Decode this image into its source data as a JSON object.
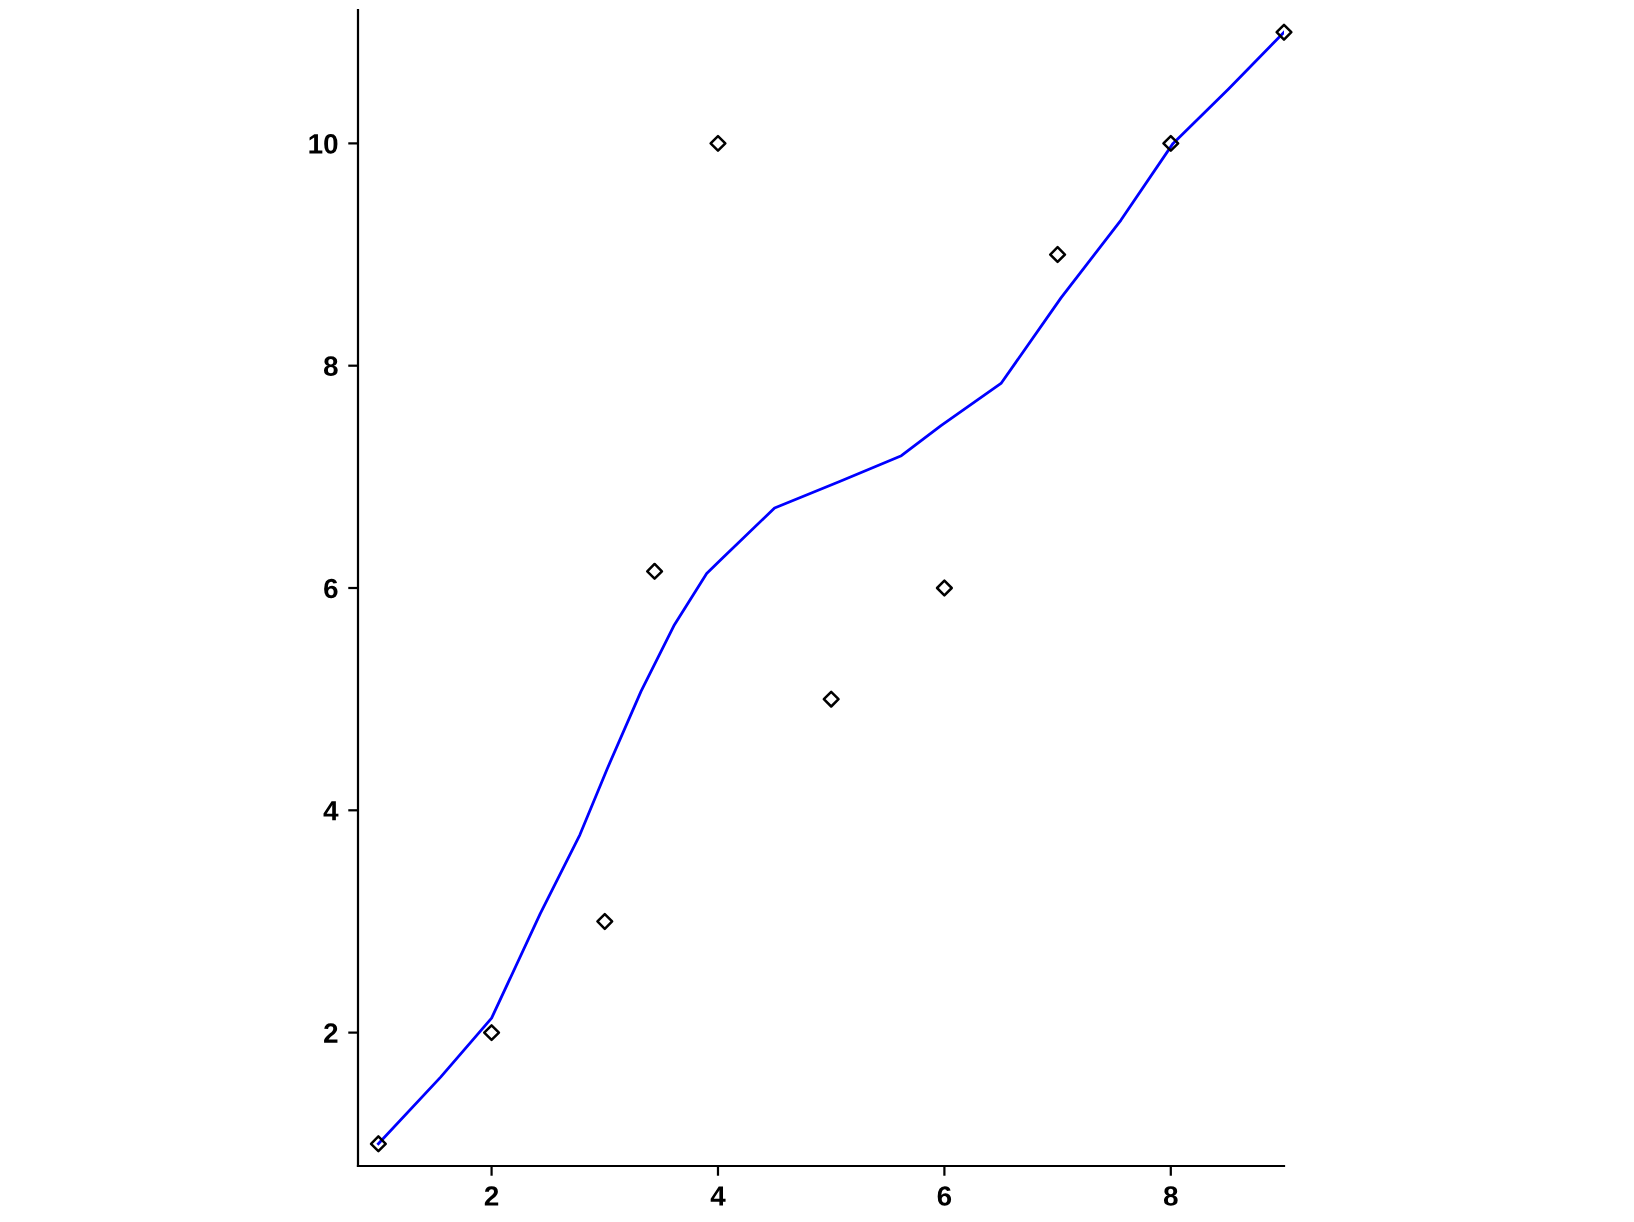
{
  "chart_data": {
    "type": "scatter",
    "xlim": [
      0.82,
      9.0
    ],
    "ylim": [
      0.8,
      11.2
    ],
    "xticks": [
      2,
      4,
      6,
      8
    ],
    "yticks": [
      2,
      4,
      6,
      8,
      10
    ],
    "grid": false,
    "legend": false,
    "series": [
      {
        "color": "#000000",
        "marker": "diamond",
        "x": [
          1,
          2,
          3,
          3.44,
          4,
          5,
          6,
          7,
          8,
          9
        ],
        "values": [
          1,
          2,
          3,
          6.15,
          10,
          5,
          6,
          9,
          10,
          11
        ]
      },
      {
        "type": "line",
        "color": "#0000ff",
        "marker": "none",
        "line_style": "solid",
        "x": [
          1,
          1.55,
          2,
          2.43,
          2.78,
          3.02,
          3.32,
          3.61,
          3.9,
          4.02,
          4.5,
          5.08,
          5.62,
          5.97,
          6.5,
          7.03,
          7.56,
          8.02,
          8.51,
          9.0
        ],
        "values": [
          1,
          1.6,
          2.13,
          3.07,
          3.78,
          4.37,
          5.07,
          5.66,
          6.13,
          6.25,
          6.72,
          6.96,
          7.19,
          7.46,
          7.84,
          8.61,
          9.31,
          10.0,
          10.49,
          11.0
        ]
      }
    ]
  }
}
